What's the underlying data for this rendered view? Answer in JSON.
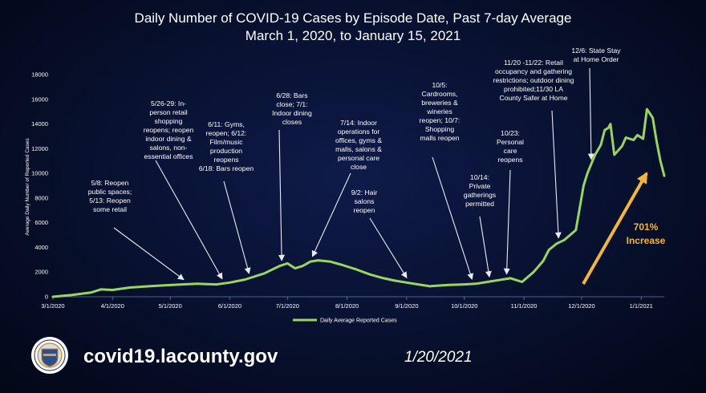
{
  "title_line1": "Daily Number of COVID-19 Cases by Episode Date, Past 7-day Average",
  "title_line2": "March 1, 2020, to January 15, 2021",
  "footer": {
    "website": "covid19.lacounty.gov",
    "date": "1/20/2021"
  },
  "colors": {
    "line": "#9bd561",
    "arrow_white": "#e8ecf5",
    "increase": "#f4b53f"
  },
  "chart_data": {
    "type": "line",
    "title": "Daily Number of COVID-19 Cases by Episode Date, Past 7-day Average",
    "subtitle": "March 1, 2020, to January 15, 2021",
    "xlabel": "",
    "ylabel": "Average Daily Number of Reported Cases",
    "x_start": "3/1/2020",
    "x_end": "1/15/2021",
    "ylim": [
      0,
      18000
    ],
    "yticks": [
      0,
      2000,
      4000,
      6000,
      8000,
      10000,
      12000,
      14000,
      16000,
      18000
    ],
    "xticks": [
      {
        "label": "3/1/2020",
        "day": 0
      },
      {
        "label": "4/1/2020",
        "day": 31
      },
      {
        "label": "5/1/2020",
        "day": 61
      },
      {
        "label": "6/1/2020",
        "day": 92
      },
      {
        "label": "7/1/2020",
        "day": 122
      },
      {
        "label": "8/1/2020",
        "day": 153
      },
      {
        "label": "9/1/2020",
        "day": 184
      },
      {
        "label": "10/1/2020",
        "day": 214
      },
      {
        "label": "11/1/2020",
        "day": 245
      },
      {
        "label": "12/1/2020",
        "day": 275
      },
      {
        "label": "1/1/2021",
        "day": 306
      }
    ],
    "legend": "Daily Average Reported Cases",
    "series": [
      {
        "name": "Daily Average Reported Cases",
        "day": [
          0,
          10,
          20,
          25,
          31,
          40,
          50,
          61,
          75,
          85,
          92,
          100,
          110,
          118,
          122,
          126,
          130,
          134,
          138,
          144,
          150,
          158,
          165,
          172,
          178,
          184,
          190,
          196,
          205,
          214,
          220,
          226,
          232,
          238,
          244,
          250,
          255,
          258,
          262,
          266,
          272,
          276,
          278,
          282,
          285,
          287,
          289,
          290,
          292,
          296,
          298,
          302,
          304,
          307,
          309,
          312,
          314,
          316,
          318
        ],
        "cases": [
          0,
          150,
          350,
          600,
          550,
          750,
          850,
          950,
          1050,
          1000,
          1150,
          1400,
          1900,
          2500,
          2700,
          2300,
          2500,
          2850,
          2950,
          2850,
          2600,
          2200,
          1800,
          1500,
          1300,
          1150,
          1000,
          850,
          950,
          1000,
          1050,
          1200,
          1350,
          1500,
          1200,
          2000,
          2900,
          3800,
          4300,
          4600,
          5400,
          9000,
          10000,
          11500,
          12300,
          13500,
          13700,
          14000,
          11500,
          12200,
          12900,
          12700,
          13100,
          12800,
          15200,
          14500,
          12600,
          11000,
          9800
        ]
      }
    ],
    "annotations": [
      {
        "lines": [
          "5/8: Reopen",
          "public spaces;",
          "5/13: Reopen",
          "some retail"
        ],
        "day": 68
      },
      {
        "lines": [
          "5/26-29: In-",
          "person retail",
          "shopping",
          "reopens; reopen",
          "indoor dining &",
          "salons, non-",
          "essential offices"
        ],
        "day": 88
      },
      {
        "lines": [
          "6/11: Gyms,",
          "reopen; 6/12:",
          "Film/music",
          "production",
          "reopens",
          "6/18: Bars reopen"
        ],
        "day": 102
      },
      {
        "lines": [
          "6/28: Bars",
          "close; 7/1:",
          "Indoor dining",
          "closes"
        ],
        "day": 119
      },
      {
        "lines": [
          "7/14: Indoor",
          "operations for",
          "offices, gyms &",
          "malls, salons &",
          "personal care",
          "close"
        ],
        "day": 135
      },
      {
        "lines": [
          "9/2: Hair",
          "salons",
          "reopen"
        ],
        "day": 184
      },
      {
        "lines": [
          "10/5:",
          "Cardrooms,",
          "breweries &",
          "wineries",
          "reopen; 10/7:",
          "Shopping",
          "malls reopen"
        ],
        "day": 218
      },
      {
        "lines": [
          "10/14:",
          "Private",
          "gatherings",
          "permitted"
        ],
        "day": 227
      },
      {
        "lines": [
          "10/23:",
          "Personal",
          "care",
          "reopens"
        ],
        "day": 236
      },
      {
        "lines": [
          "11/20 -11/22: Retail",
          "occupancy and gathering",
          "restrictions; outdoor dining",
          "prohibited;11/30 LA",
          "County Safer at Home"
        ],
        "day": 263
      },
      {
        "lines": [
          "12/6: State Stay",
          "at Home Order"
        ],
        "day": 280
      }
    ],
    "callout": {
      "lines": [
        "701%",
        "Increase"
      ]
    }
  }
}
